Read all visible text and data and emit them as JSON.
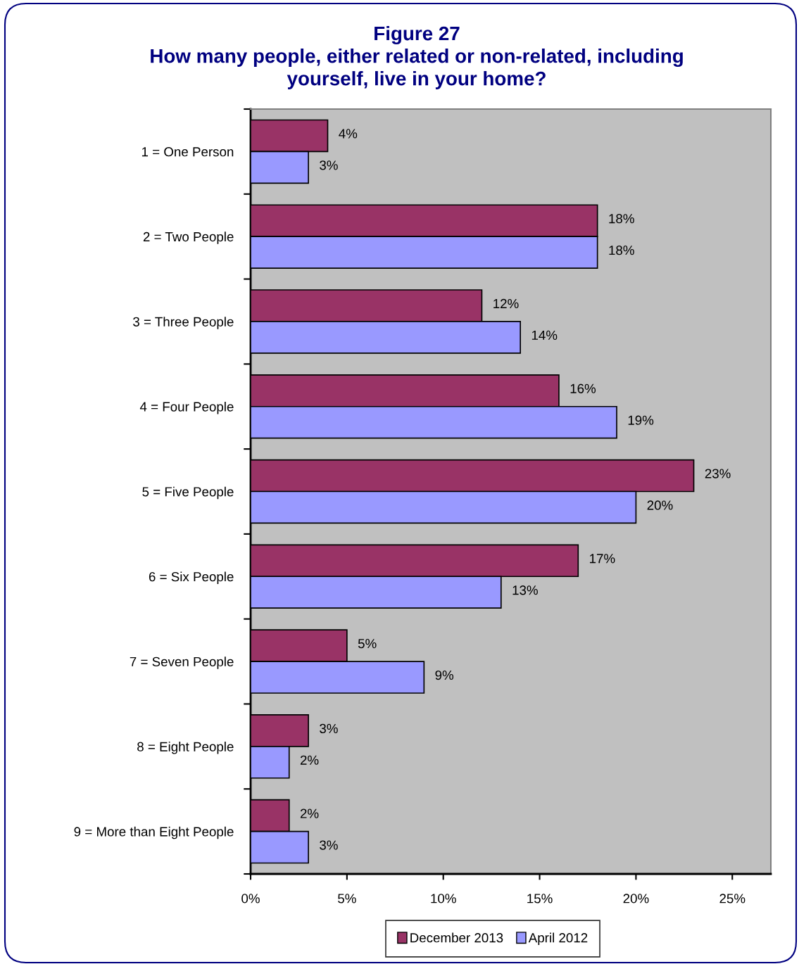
{
  "chart_data": {
    "type": "bar",
    "orientation": "horizontal",
    "title": "Figure 27",
    "subtitle": "How many people, either related or non-related, including\nyourself, live in your home?",
    "categories": [
      "1 = One Person",
      "2 = Two People",
      "3 = Three People",
      "4 = Four People",
      "5 = Five People",
      "6 = Six People",
      "7 = Seven People",
      "8 = Eight People",
      "9 = More than Eight People"
    ],
    "series": [
      {
        "name": "December 2013",
        "color": "#993366",
        "values": [
          4,
          18,
          12,
          16,
          23,
          17,
          5,
          3,
          2
        ],
        "value_labels": [
          "4%",
          "18%",
          "12%",
          "16%",
          "23%",
          "17%",
          "5%",
          "3%",
          "2%"
        ]
      },
      {
        "name": "April 2012",
        "color": "#9999ff",
        "values": [
          3,
          18,
          14,
          19,
          20,
          13,
          9,
          2,
          3
        ],
        "value_labels": [
          "3%",
          "18%",
          "14%",
          "19%",
          "20%",
          "13%",
          "9%",
          "2%",
          "3%"
        ]
      }
    ],
    "xlim": [
      0,
      27
    ],
    "xticks": [
      {
        "value": 0,
        "label": "0%"
      },
      {
        "value": 5,
        "label": "5%"
      },
      {
        "value": 10,
        "label": "10%"
      },
      {
        "value": 15,
        "label": "15%"
      },
      {
        "value": 20,
        "label": "20%"
      },
      {
        "value": 25,
        "label": "25%"
      }
    ],
    "legend": "bottom"
  }
}
